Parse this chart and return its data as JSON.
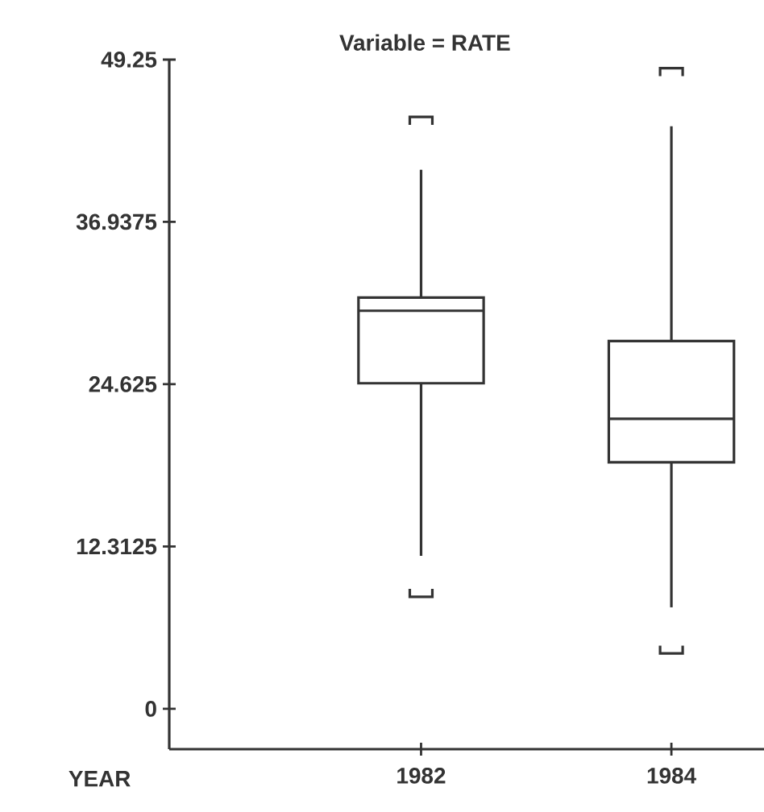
{
  "chart_data": {
    "type": "box",
    "title": "Variable = RATE",
    "xlabel": "YEAR",
    "categories": [
      "1982",
      "1984"
    ],
    "boxes": [
      {
        "low": 11.6,
        "q1": 24.7,
        "median": 30.2,
        "q3": 31.2,
        "high": 40.9,
        "outliers": [
          44.6,
          8.8
        ]
      },
      {
        "low": 7.7,
        "q1": 18.7,
        "median": 22.0,
        "q3": 27.9,
        "high": 44.2,
        "outliers": [
          48.3,
          4.5
        ]
      }
    ],
    "ylim": [
      -3.06,
      49.25
    ],
    "yticks": [
      0,
      12.3125,
      24.625,
      36.9375,
      49.25
    ]
  }
}
